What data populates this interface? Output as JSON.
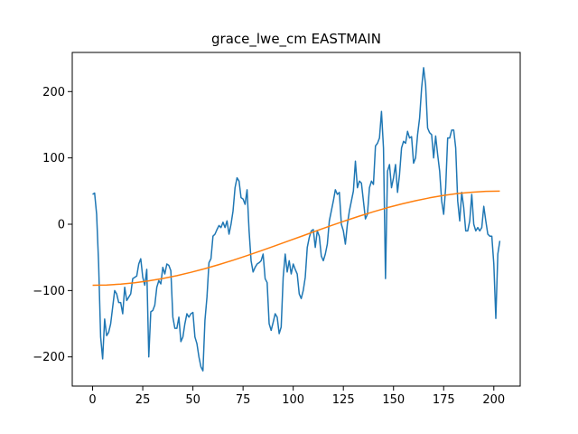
{
  "chart_data": {
    "type": "line",
    "title": "grace_lwe_cm EASTMAIN",
    "xlim": [
      -10.15,
      213.15
    ],
    "ylim": [
      -244,
      259
    ],
    "xticks": [
      0,
      25,
      50,
      75,
      100,
      125,
      150,
      175,
      200
    ],
    "yticks": [
      {
        "value": -200,
        "label": "−200"
      },
      {
        "value": -100,
        "label": "−100"
      },
      0,
      100,
      200
    ],
    "series": [
      {
        "color": "#1f77b4",
        "x": [
          0,
          1,
          2,
          3,
          4,
          5,
          6,
          7,
          8,
          9,
          10,
          11,
          12,
          13,
          14,
          15,
          16,
          17,
          18,
          19,
          20,
          21,
          22,
          23,
          24,
          25,
          26,
          27,
          28,
          29,
          30,
          31,
          32,
          33,
          34,
          35,
          36,
          37,
          38,
          39,
          40,
          41,
          42,
          43,
          44,
          45,
          46,
          47,
          48,
          49,
          50,
          51,
          52,
          53,
          54,
          55,
          56,
          57,
          58,
          59,
          60,
          61,
          62,
          63,
          64,
          65,
          66,
          67,
          68,
          69,
          70,
          71,
          72,
          73,
          74,
          75,
          76,
          77,
          78,
          79,
          80,
          81,
          82,
          83,
          84,
          85,
          86,
          87,
          88,
          89,
          90,
          91,
          92,
          93,
          94,
          95,
          96,
          97,
          98,
          99,
          100,
          101,
          102,
          103,
          104,
          105,
          106,
          107,
          108,
          109,
          110,
          111,
          112,
          113,
          114,
          115,
          116,
          117,
          118,
          119,
          120,
          121,
          122,
          123,
          124,
          125,
          126,
          127,
          128,
          129,
          130,
          131,
          132,
          133,
          134,
          135,
          136,
          137,
          138,
          139,
          140,
          141,
          142,
          143,
          144,
          145,
          146,
          147,
          148,
          149,
          150,
          151,
          152,
          153,
          154,
          155,
          156,
          157,
          158,
          159,
          160,
          161,
          162,
          163,
          164,
          165,
          166,
          167,
          168,
          169,
          170,
          171,
          172,
          173,
          174,
          175,
          176,
          177,
          178,
          179,
          180,
          181,
          182,
          183,
          184,
          185,
          186,
          187,
          188,
          189,
          190,
          191,
          192,
          193,
          194,
          195,
          196,
          197,
          198,
          199,
          200,
          201,
          202,
          203
        ],
        "values": [
          45,
          47,
          15,
          -60,
          -170,
          -203,
          -143,
          -168,
          -163,
          -150,
          -125,
          -100,
          -105,
          -118,
          -118,
          -135,
          -95,
          -115,
          -110,
          -105,
          -82,
          -80,
          -78,
          -60,
          -52,
          -80,
          -92,
          -68,
          -200,
          -132,
          -130,
          -122,
          -95,
          -85,
          -90,
          -65,
          -75,
          -60,
          -62,
          -70,
          -140,
          -157,
          -157,
          -140,
          -177,
          -170,
          -150,
          -135,
          -140,
          -135,
          -133,
          -170,
          -180,
          -200,
          -215,
          -221,
          -145,
          -110,
          -58,
          -52,
          -18,
          -15,
          -8,
          -2,
          -5,
          3,
          -5,
          5,
          -15,
          0,
          20,
          55,
          70,
          65,
          40,
          38,
          30,
          52,
          -10,
          -55,
          -72,
          -65,
          -60,
          -58,
          -55,
          -45,
          -82,
          -88,
          -150,
          -160,
          -148,
          -135,
          -140,
          -165,
          -155,
          -80,
          -45,
          -72,
          -55,
          -75,
          -60,
          -68,
          -75,
          -105,
          -112,
          -100,
          -80,
          -35,
          -20,
          -10,
          -8,
          -35,
          -10,
          -18,
          -48,
          -55,
          -45,
          -30,
          5,
          20,
          35,
          52,
          45,
          48,
          0,
          -10,
          -30,
          0,
          20,
          35,
          50,
          95,
          55,
          65,
          62,
          35,
          8,
          15,
          55,
          65,
          60,
          118,
          122,
          130,
          170,
          115,
          -82,
          80,
          90,
          55,
          70,
          90,
          48,
          75,
          115,
          125,
          122,
          140,
          130,
          132,
          92,
          100,
          135,
          160,
          205,
          236,
          210,
          145,
          138,
          135,
          100,
          133,
          105,
          80,
          35,
          15,
          55,
          130,
          130,
          142,
          142,
          115,
          35,
          5,
          48,
          25,
          -10,
          -10,
          5,
          45,
          0,
          -10,
          -5,
          -10,
          -5,
          27,
          5,
          -15,
          -18,
          -18,
          -60,
          -142,
          -45,
          -25
        ]
      },
      {
        "color": "#ff7f0e",
        "x": [
          0,
          7,
          14,
          21,
          28,
          35,
          42,
          49,
          56,
          63,
          70,
          77,
          84,
          91,
          98,
          105,
          112,
          119,
          126,
          133,
          140,
          147,
          154,
          161,
          168,
          175,
          182,
          189,
          196,
          203
        ],
        "values": [
          -92,
          -91.6,
          -90.3,
          -88.3,
          -85.4,
          -81.8,
          -77.5,
          -72.5,
          -67.0,
          -60.8,
          -54.3,
          -47.3,
          -40.0,
          -32.5,
          -24.8,
          -17.2,
          -9.5,
          -2.0,
          5.3,
          12.3,
          18.8,
          25.0,
          30.5,
          35.5,
          39.8,
          43.4,
          46.3,
          48.3,
          49.6,
          50
        ]
      }
    ]
  }
}
